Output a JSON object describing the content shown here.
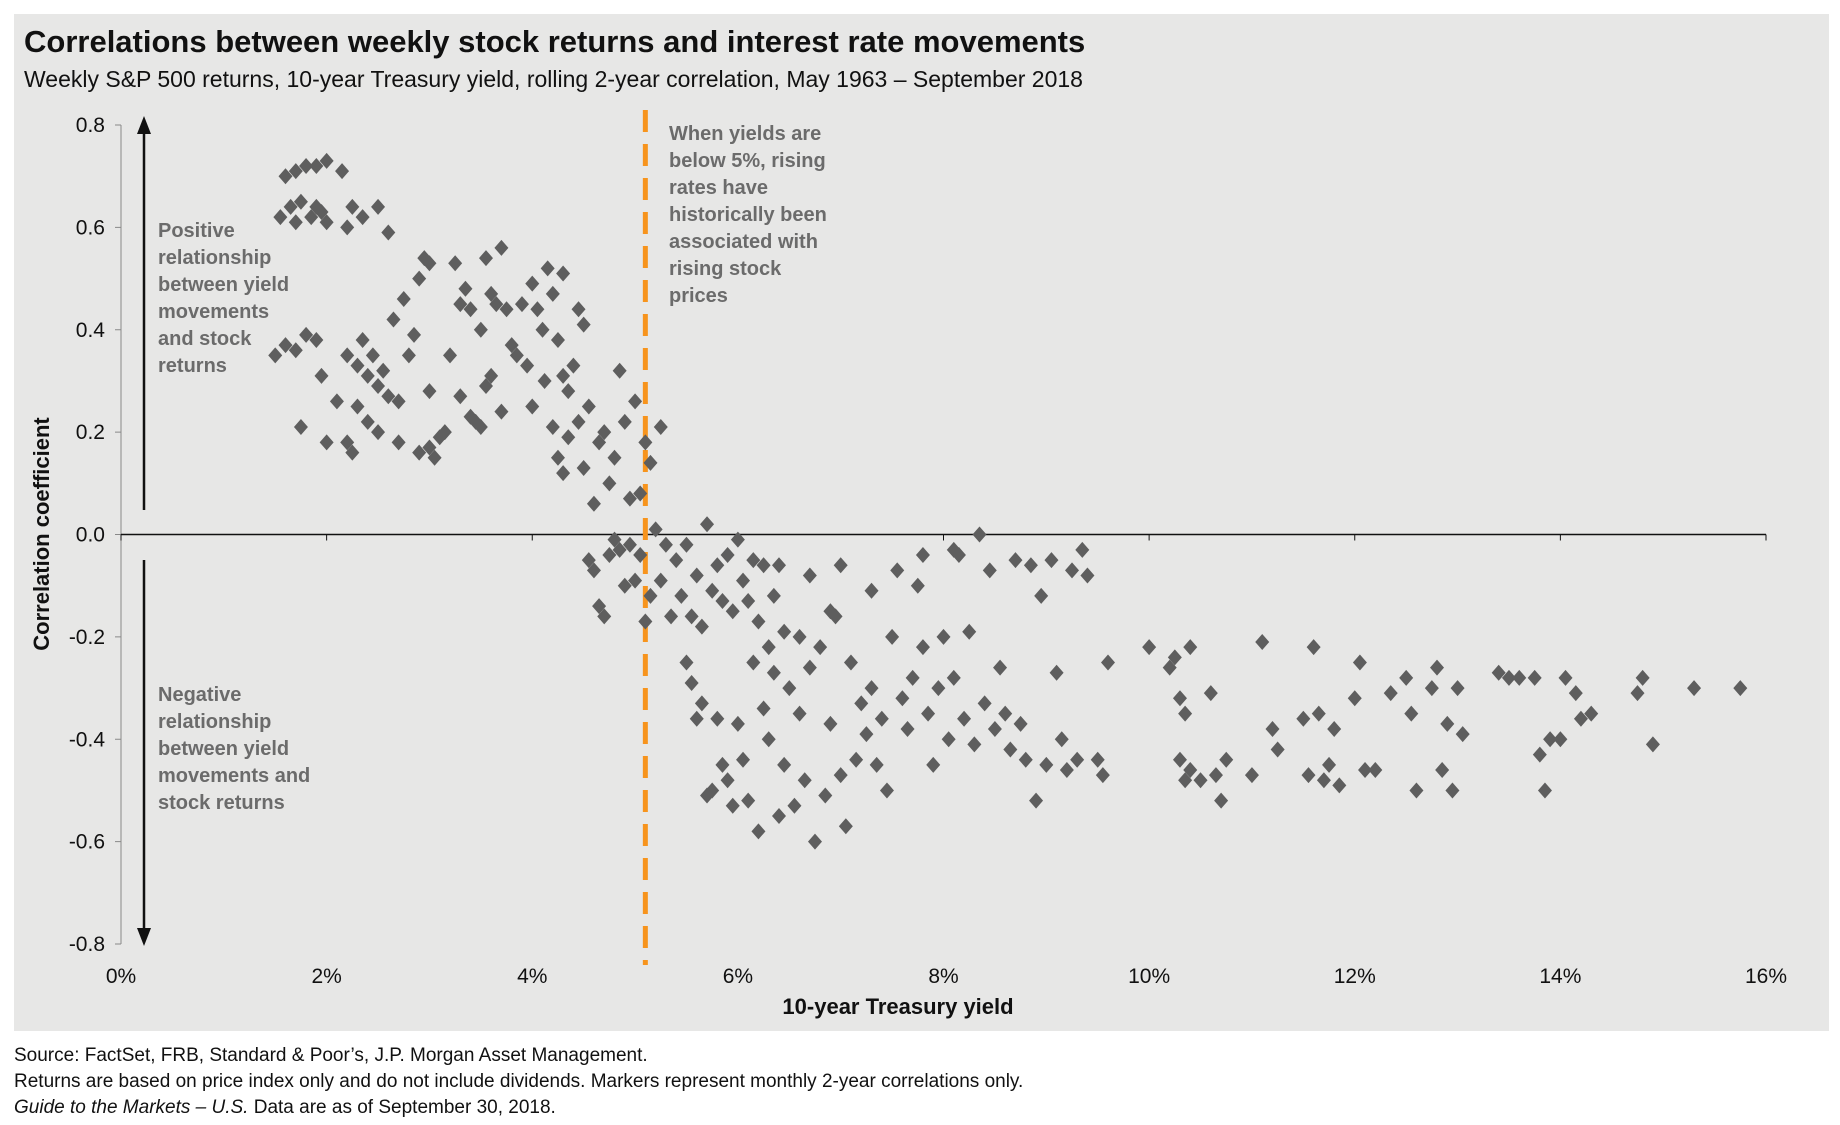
{
  "title": "Correlations between weekly stock returns and interest rate movements",
  "subtitle": "Weekly S&P 500 returns, 10-year Treasury yield, rolling 2-year correlation, May 1963 – September 2018",
  "annotations": {
    "positive": "Positive\nrelationship\nbetween yield\nmovements\nand stock\nreturns",
    "negative": "Negative\nrelationship\nbetween yield\nmovements and\nstock returns",
    "threshold": "When yields are\nbelow 5%, rising\nrates have\nhistorically been\nassociated with\nrising stock\nprices"
  },
  "footnotes": {
    "source": "Source: FactSet, FRB, Standard & Poor’s, J.P. Morgan Asset Management.",
    "note": "Returns are based on price index only and do not include dividends. Markers represent monthly 2-year correlations only.",
    "guide_italic": "Guide to the Markets – U.S.",
    "guide_rest": " Data are as of September 30, 2018."
  },
  "colors": {
    "background": "#e7e7e6",
    "marker": "#5e5e5e",
    "threshold_line": "#f7941d"
  },
  "chart_data": {
    "type": "scatter",
    "xlabel": "10-year Treasury yield",
    "ylabel": "Correlation coefficient",
    "xlim": [
      0,
      16
    ],
    "ylim": [
      -0.8,
      0.8
    ],
    "xticks": [
      "0%",
      "2%",
      "4%",
      "6%",
      "8%",
      "10%",
      "12%",
      "14%",
      "16%"
    ],
    "yticks": [
      "0.8",
      "0.6",
      "0.4",
      "0.2",
      "0.0",
      "-0.2",
      "-0.4",
      "-0.6",
      "-0.8"
    ],
    "threshold_x": 5.1,
    "grid": false,
    "marker": "diamond",
    "points": [
      [
        1.6,
        0.7
      ],
      [
        1.7,
        0.71
      ],
      [
        1.8,
        0.72
      ],
      [
        1.9,
        0.72
      ],
      [
        2.0,
        0.73
      ],
      [
        2.15,
        0.71
      ],
      [
        1.55,
        0.62
      ],
      [
        1.65,
        0.64
      ],
      [
        1.75,
        0.65
      ],
      [
        1.85,
        0.62
      ],
      [
        1.95,
        0.63
      ],
      [
        2.0,
        0.61
      ],
      [
        1.7,
        0.61
      ],
      [
        1.9,
        0.64
      ],
      [
        2.2,
        0.6
      ],
      [
        2.25,
        0.64
      ],
      [
        2.35,
        0.62
      ],
      [
        2.5,
        0.64
      ],
      [
        2.6,
        0.59
      ],
      [
        1.5,
        0.35
      ],
      [
        1.6,
        0.37
      ],
      [
        1.7,
        0.36
      ],
      [
        1.8,
        0.39
      ],
      [
        1.9,
        0.38
      ],
      [
        1.95,
        0.31
      ],
      [
        1.75,
        0.21
      ],
      [
        2.0,
        0.18
      ],
      [
        2.1,
        0.26
      ],
      [
        2.2,
        0.18
      ],
      [
        2.25,
        0.16
      ],
      [
        2.2,
        0.35
      ],
      [
        2.3,
        0.33
      ],
      [
        2.35,
        0.38
      ],
      [
        2.4,
        0.31
      ],
      [
        2.45,
        0.35
      ],
      [
        2.5,
        0.29
      ],
      [
        2.3,
        0.25
      ],
      [
        2.4,
        0.22
      ],
      [
        2.5,
        0.2
      ],
      [
        2.55,
        0.32
      ],
      [
        2.6,
        0.27
      ],
      [
        2.65,
        0.42
      ],
      [
        2.7,
        0.26
      ],
      [
        2.75,
        0.46
      ],
      [
        2.8,
        0.35
      ],
      [
        2.85,
        0.39
      ],
      [
        2.9,
        0.5
      ],
      [
        2.95,
        0.54
      ],
      [
        3.0,
        0.53
      ],
      [
        2.7,
        0.18
      ],
      [
        2.9,
        0.16
      ],
      [
        3.0,
        0.17
      ],
      [
        3.05,
        0.15
      ],
      [
        3.1,
        0.19
      ],
      [
        3.15,
        0.2
      ],
      [
        3.2,
        0.35
      ],
      [
        3.0,
        0.28
      ],
      [
        3.25,
        0.53
      ],
      [
        3.3,
        0.27
      ],
      [
        3.4,
        0.23
      ],
      [
        3.5,
        0.4
      ],
      [
        3.55,
        0.54
      ],
      [
        3.6,
        0.47
      ],
      [
        3.7,
        0.56
      ],
      [
        3.3,
        0.45
      ],
      [
        3.35,
        0.48
      ],
      [
        3.4,
        0.44
      ],
      [
        3.45,
        0.22
      ],
      [
        3.5,
        0.21
      ],
      [
        3.55,
        0.29
      ],
      [
        3.6,
        0.31
      ],
      [
        3.65,
        0.45
      ],
      [
        3.7,
        0.24
      ],
      [
        3.75,
        0.44
      ],
      [
        3.8,
        0.37
      ],
      [
        3.85,
        0.35
      ],
      [
        3.9,
        0.45
      ],
      [
        3.95,
        0.33
      ],
      [
        4.0,
        0.49
      ],
      [
        4.0,
        0.25
      ],
      [
        4.05,
        0.44
      ],
      [
        4.1,
        0.4
      ],
      [
        4.12,
        0.3
      ],
      [
        4.15,
        0.52
      ],
      [
        4.2,
        0.47
      ],
      [
        4.25,
        0.38
      ],
      [
        4.3,
        0.31
      ],
      [
        4.3,
        0.51
      ],
      [
        4.35,
        0.28
      ],
      [
        4.4,
        0.33
      ],
      [
        4.45,
        0.44
      ],
      [
        4.5,
        0.41
      ],
      [
        4.2,
        0.21
      ],
      [
        4.25,
        0.15
      ],
      [
        4.3,
        0.12
      ],
      [
        4.35,
        0.19
      ],
      [
        4.45,
        0.22
      ],
      [
        4.5,
        0.13
      ],
      [
        4.55,
        0.25
      ],
      [
        4.6,
        0.06
      ],
      [
        4.65,
        0.18
      ],
      [
        4.7,
        0.2
      ],
      [
        4.75,
        0.1
      ],
      [
        4.8,
        0.15
      ],
      [
        4.85,
        0.32
      ],
      [
        4.9,
        0.22
      ],
      [
        4.95,
        0.07
      ],
      [
        5.0,
        0.26
      ],
      [
        5.05,
        0.08
      ],
      [
        5.1,
        0.18
      ],
      [
        5.15,
        0.14
      ],
      [
        5.25,
        0.21
      ],
      [
        4.55,
        -0.05
      ],
      [
        4.6,
        -0.07
      ],
      [
        4.65,
        -0.14
      ],
      [
        4.7,
        -0.16
      ],
      [
        4.75,
        -0.04
      ],
      [
        4.8,
        -0.01
      ],
      [
        4.85,
        -0.03
      ],
      [
        4.9,
        -0.1
      ],
      [
        4.95,
        -0.02
      ],
      [
        5.0,
        -0.09
      ],
      [
        5.05,
        -0.04
      ],
      [
        5.1,
        -0.17
      ],
      [
        5.15,
        -0.12
      ],
      [
        5.2,
        0.01
      ],
      [
        5.25,
        -0.09
      ],
      [
        5.3,
        -0.02
      ],
      [
        5.35,
        -0.16
      ],
      [
        5.4,
        -0.05
      ],
      [
        5.45,
        -0.12
      ],
      [
        5.5,
        -0.02
      ],
      [
        5.55,
        -0.16
      ],
      [
        5.6,
        -0.08
      ],
      [
        5.65,
        -0.18
      ],
      [
        5.7,
        0.02
      ],
      [
        5.75,
        -0.11
      ],
      [
        5.8,
        -0.06
      ],
      [
        5.85,
        -0.13
      ],
      [
        5.9,
        -0.04
      ],
      [
        5.95,
        -0.15
      ],
      [
        6.0,
        -0.01
      ],
      [
        6.05,
        -0.09
      ],
      [
        6.1,
        -0.13
      ],
      [
        6.15,
        -0.05
      ],
      [
        6.2,
        -0.17
      ],
      [
        6.25,
        -0.06
      ],
      [
        6.3,
        -0.22
      ],
      [
        6.35,
        -0.12
      ],
      [
        6.4,
        -0.06
      ],
      [
        6.45,
        -0.19
      ],
      [
        5.5,
        -0.25
      ],
      [
        5.55,
        -0.29
      ],
      [
        5.6,
        -0.36
      ],
      [
        5.65,
        -0.33
      ],
      [
        5.7,
        -0.51
      ],
      [
        5.75,
        -0.5
      ],
      [
        5.8,
        -0.36
      ],
      [
        5.85,
        -0.45
      ],
      [
        5.9,
        -0.48
      ],
      [
        5.95,
        -0.53
      ],
      [
        6.0,
        -0.37
      ],
      [
        6.05,
        -0.44
      ],
      [
        6.1,
        -0.52
      ],
      [
        6.15,
        -0.25
      ],
      [
        6.2,
        -0.58
      ],
      [
        6.25,
        -0.34
      ],
      [
        6.3,
        -0.4
      ],
      [
        6.35,
        -0.27
      ],
      [
        6.4,
        -0.55
      ],
      [
        6.45,
        -0.45
      ],
      [
        6.5,
        -0.3
      ],
      [
        6.55,
        -0.53
      ],
      [
        6.6,
        -0.35
      ],
      [
        6.65,
        -0.48
      ],
      [
        6.7,
        -0.26
      ],
      [
        6.75,
        -0.6
      ],
      [
        6.8,
        -0.22
      ],
      [
        6.85,
        -0.51
      ],
      [
        6.9,
        -0.37
      ],
      [
        6.95,
        -0.16
      ],
      [
        7.0,
        -0.47
      ],
      [
        7.05,
        -0.57
      ],
      [
        7.1,
        -0.25
      ],
      [
        7.15,
        -0.44
      ],
      [
        7.2,
        -0.33
      ],
      [
        7.25,
        -0.39
      ],
      [
        7.3,
        -0.3
      ],
      [
        7.35,
        -0.45
      ],
      [
        7.4,
        -0.36
      ],
      [
        7.45,
        -0.5
      ],
      [
        6.6,
        -0.2
      ],
      [
        6.7,
        -0.08
      ],
      [
        6.9,
        -0.15
      ],
      [
        7.0,
        -0.06
      ],
      [
        7.3,
        -0.11
      ],
      [
        7.5,
        -0.2
      ],
      [
        7.55,
        -0.07
      ],
      [
        7.6,
        -0.32
      ],
      [
        7.65,
        -0.38
      ],
      [
        7.7,
        -0.28
      ],
      [
        7.75,
        -0.1
      ],
      [
        7.8,
        -0.22
      ],
      [
        7.85,
        -0.35
      ],
      [
        7.9,
        -0.45
      ],
      [
        7.95,
        -0.3
      ],
      [
        8.0,
        -0.2
      ],
      [
        8.05,
        -0.4
      ],
      [
        8.1,
        -0.28
      ],
      [
        8.15,
        -0.04
      ],
      [
        8.2,
        -0.36
      ],
      [
        8.25,
        -0.19
      ],
      [
        8.3,
        -0.41
      ],
      [
        8.35,
        0.0
      ],
      [
        8.4,
        -0.33
      ],
      [
        8.45,
        -0.07
      ],
      [
        8.5,
        -0.38
      ],
      [
        8.55,
        -0.26
      ],
      [
        8.6,
        -0.35
      ],
      [
        8.65,
        -0.42
      ],
      [
        8.7,
        -0.05
      ],
      [
        8.75,
        -0.37
      ],
      [
        8.8,
        -0.44
      ],
      [
        8.85,
        -0.06
      ],
      [
        8.9,
        -0.52
      ],
      [
        8.95,
        -0.12
      ],
      [
        9.0,
        -0.45
      ],
      [
        9.05,
        -0.05
      ],
      [
        9.1,
        -0.27
      ],
      [
        9.15,
        -0.4
      ],
      [
        9.2,
        -0.46
      ],
      [
        9.25,
        -0.07
      ],
      [
        9.3,
        -0.44
      ],
      [
        9.35,
        -0.03
      ],
      [
        9.4,
        -0.08
      ],
      [
        9.5,
        -0.44
      ],
      [
        9.55,
        -0.47
      ],
      [
        9.6,
        -0.25
      ],
      [
        7.8,
        -0.04
      ],
      [
        8.1,
        -0.03
      ],
      [
        10.0,
        -0.22
      ],
      [
        10.2,
        -0.26
      ],
      [
        10.25,
        -0.24
      ],
      [
        10.3,
        -0.32
      ],
      [
        10.35,
        -0.35
      ],
      [
        10.4,
        -0.22
      ],
      [
        10.3,
        -0.44
      ],
      [
        10.35,
        -0.48
      ],
      [
        10.4,
        -0.46
      ],
      [
        10.5,
        -0.48
      ],
      [
        10.6,
        -0.31
      ],
      [
        10.65,
        -0.47
      ],
      [
        10.7,
        -0.52
      ],
      [
        10.75,
        -0.44
      ],
      [
        11.0,
        -0.47
      ],
      [
        11.1,
        -0.21
      ],
      [
        11.2,
        -0.38
      ],
      [
        11.25,
        -0.42
      ],
      [
        11.5,
        -0.36
      ],
      [
        11.55,
        -0.47
      ],
      [
        11.6,
        -0.22
      ],
      [
        11.65,
        -0.35
      ],
      [
        11.7,
        -0.48
      ],
      [
        11.75,
        -0.45
      ],
      [
        11.8,
        -0.38
      ],
      [
        11.85,
        -0.49
      ],
      [
        12.0,
        -0.32
      ],
      [
        12.05,
        -0.25
      ],
      [
        12.1,
        -0.46
      ],
      [
        12.2,
        -0.46
      ],
      [
        12.35,
        -0.31
      ],
      [
        12.5,
        -0.28
      ],
      [
        12.55,
        -0.35
      ],
      [
        12.6,
        -0.5
      ],
      [
        12.75,
        -0.3
      ],
      [
        12.8,
        -0.26
      ],
      [
        12.85,
        -0.46
      ],
      [
        12.9,
        -0.37
      ],
      [
        12.95,
        -0.5
      ],
      [
        13.05,
        -0.39
      ],
      [
        13.0,
        -0.3
      ],
      [
        13.4,
        -0.27
      ],
      [
        13.5,
        -0.28
      ],
      [
        13.6,
        -0.28
      ],
      [
        13.75,
        -0.28
      ],
      [
        13.8,
        -0.43
      ],
      [
        13.85,
        -0.5
      ],
      [
        13.9,
        -0.4
      ],
      [
        14.0,
        -0.4
      ],
      [
        14.05,
        -0.28
      ],
      [
        14.15,
        -0.31
      ],
      [
        14.2,
        -0.36
      ],
      [
        14.3,
        -0.35
      ],
      [
        14.75,
        -0.31
      ],
      [
        14.8,
        -0.28
      ],
      [
        14.9,
        -0.41
      ],
      [
        15.3,
        -0.3
      ],
      [
        15.75,
        -0.3
      ]
    ]
  }
}
